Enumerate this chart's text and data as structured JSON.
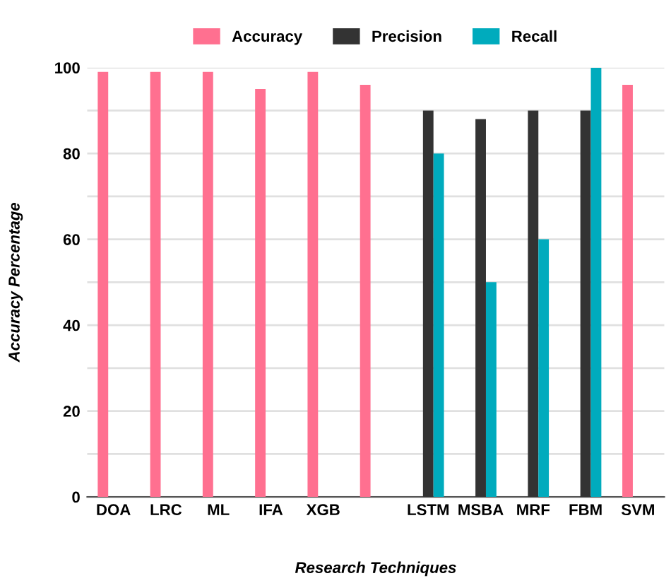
{
  "chart_data": {
    "type": "bar",
    "xlabel": "Research Techniques",
    "ylabel": "Accuracy Percentage",
    "categories": [
      "DOA",
      "LRC",
      "ML",
      "IFA",
      "XGB",
      null,
      "LSTM",
      "MSBA",
      "MRF",
      "FBM",
      "SVM"
    ],
    "series": [
      {
        "name": "Accuracy",
        "color": "#ff7090",
        "values": [
          99,
          99,
          99,
          95,
          99,
          96,
          0,
          0,
          0,
          0,
          96
        ]
      },
      {
        "name": "Precision",
        "color": "#333333",
        "values": [
          0,
          0,
          0,
          0,
          0,
          0,
          90,
          88,
          90,
          90,
          0
        ]
      },
      {
        "name": "Recall",
        "color": "#00abbd",
        "values": [
          0,
          0,
          0,
          0,
          0,
          0,
          80,
          50,
          60,
          100,
          0
        ]
      }
    ],
    "ylim": [
      0,
      100
    ],
    "yticks": [
      0,
      {
        "value": 10,
        "label": null
      },
      20,
      {
        "value": 30,
        "label": null
      },
      40,
      {
        "value": 50,
        "label": null
      },
      60,
      {
        "value": 70,
        "label": null
      },
      80,
      {
        "value": 90,
        "label": null
      },
      100
    ],
    "grid": "y",
    "legend": "top"
  }
}
